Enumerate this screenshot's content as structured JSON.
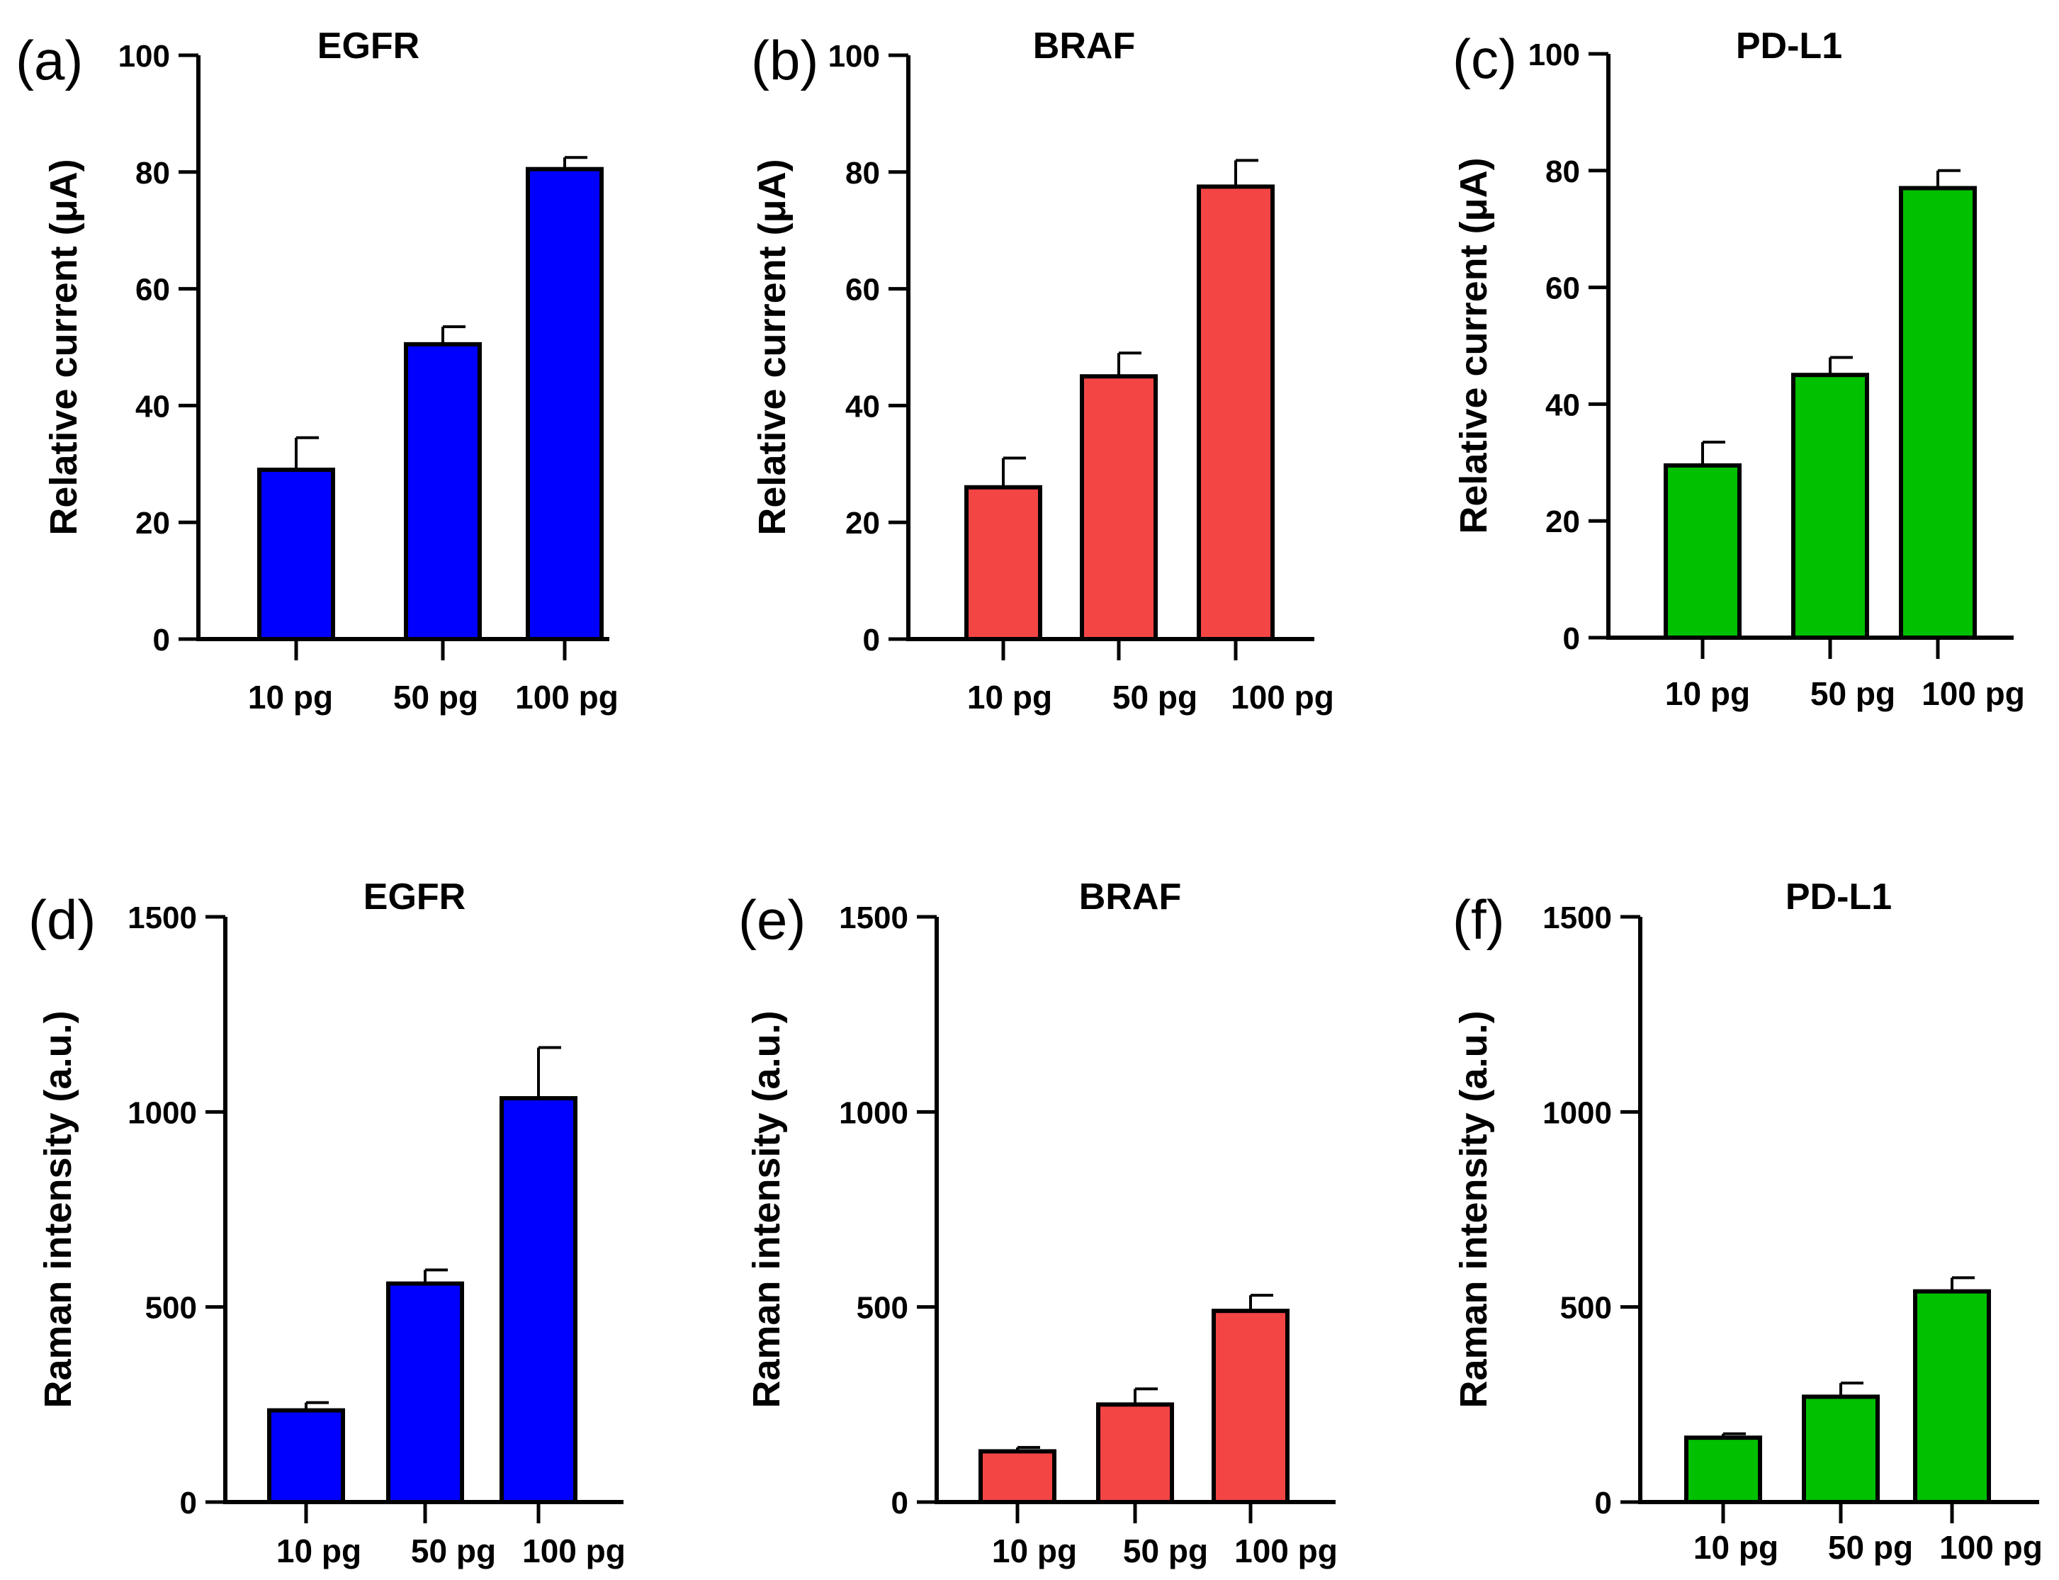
{
  "colors": {
    "blue": "#0000ff",
    "red": "#f44545",
    "green": "#00c000",
    "axis": "#000000"
  },
  "chart_data": [
    {
      "id": "a",
      "panel_label": "(a)",
      "type": "bar",
      "title": "EGFR",
      "ylabel": "Relative current (μA)",
      "xlabel": "",
      "categories": [
        "10 pg",
        "50 pg",
        "100 pg"
      ],
      "values": [
        29,
        50.5,
        80.5
      ],
      "errors": [
        5.5,
        3,
        2
      ],
      "ylim": [
        0,
        100
      ],
      "yticks": [
        0,
        20,
        40,
        60,
        80,
        100
      ],
      "yticklabels": [
        "0",
        "20",
        "40",
        "60",
        "80",
        "100"
      ],
      "color": "blue"
    },
    {
      "id": "b",
      "panel_label": "(b)",
      "type": "bar",
      "title": "BRAF",
      "ylabel": "Relative current (μA)",
      "xlabel": "",
      "categories": [
        "10 pg",
        "50 pg",
        "100 pg"
      ],
      "values": [
        26,
        45,
        77.5
      ],
      "errors": [
        5,
        4,
        4.5
      ],
      "ylim": [
        0,
        100
      ],
      "yticks": [
        0,
        20,
        40,
        60,
        80,
        100
      ],
      "yticklabels": [
        "0",
        "20",
        "40",
        "60",
        "80",
        "100"
      ],
      "color": "red"
    },
    {
      "id": "c",
      "panel_label": "(c)",
      "type": "bar",
      "title": "PD-L1",
      "ylabel": "Relative current (μA)",
      "xlabel": "",
      "categories": [
        "10 pg",
        "50 pg",
        "100 pg"
      ],
      "values": [
        29.5,
        45,
        77
      ],
      "errors": [
        4,
        3,
        3
      ],
      "ylim": [
        0,
        100
      ],
      "yticks": [
        0,
        20,
        40,
        60,
        80,
        100
      ],
      "yticklabels": [
        "0",
        "20",
        "40",
        "60",
        "80",
        "100"
      ],
      "color": "green"
    },
    {
      "id": "d",
      "panel_label": "(d)",
      "type": "bar",
      "title": "EGFR",
      "ylabel": "Raman intensity (a.u.)",
      "xlabel": "",
      "categories": [
        "10 pg",
        "50 pg",
        "100 pg"
      ],
      "values": [
        235,
        560,
        1035
      ],
      "errors": [
        20,
        35,
        130
      ],
      "ylim": [
        0,
        1500
      ],
      "yticks": [
        0,
        500,
        1000,
        1500
      ],
      "yticklabels": [
        "0",
        "500",
        "1000",
        "1500"
      ],
      "color": "blue"
    },
    {
      "id": "e",
      "panel_label": "(e)",
      "type": "bar",
      "title": "BRAF",
      "ylabel": "Raman intensity (a.u.)",
      "xlabel": "",
      "categories": [
        "10 pg",
        "50 pg",
        "100 pg"
      ],
      "values": [
        130,
        250,
        490
      ],
      "errors": [
        10,
        40,
        40
      ],
      "ylim": [
        0,
        1500
      ],
      "yticks": [
        0,
        500,
        1000,
        1500
      ],
      "yticklabels": [
        "0",
        "500",
        "1000",
        "1500"
      ],
      "color": "red"
    },
    {
      "id": "f",
      "panel_label": "(f)",
      "type": "bar",
      "title": "PD-L1",
      "ylabel": "Raman intensity (a.u.)",
      "xlabel": "",
      "categories": [
        "10 pg",
        "50 pg",
        "100 pg"
      ],
      "values": [
        165,
        270,
        540
      ],
      "errors": [
        10,
        35,
        35
      ],
      "ylim": [
        0,
        1500
      ],
      "yticks": [
        0,
        500,
        1000,
        1500
      ],
      "yticklabels": [
        "0",
        "500",
        "1000",
        "1500"
      ],
      "color": "green"
    }
  ]
}
